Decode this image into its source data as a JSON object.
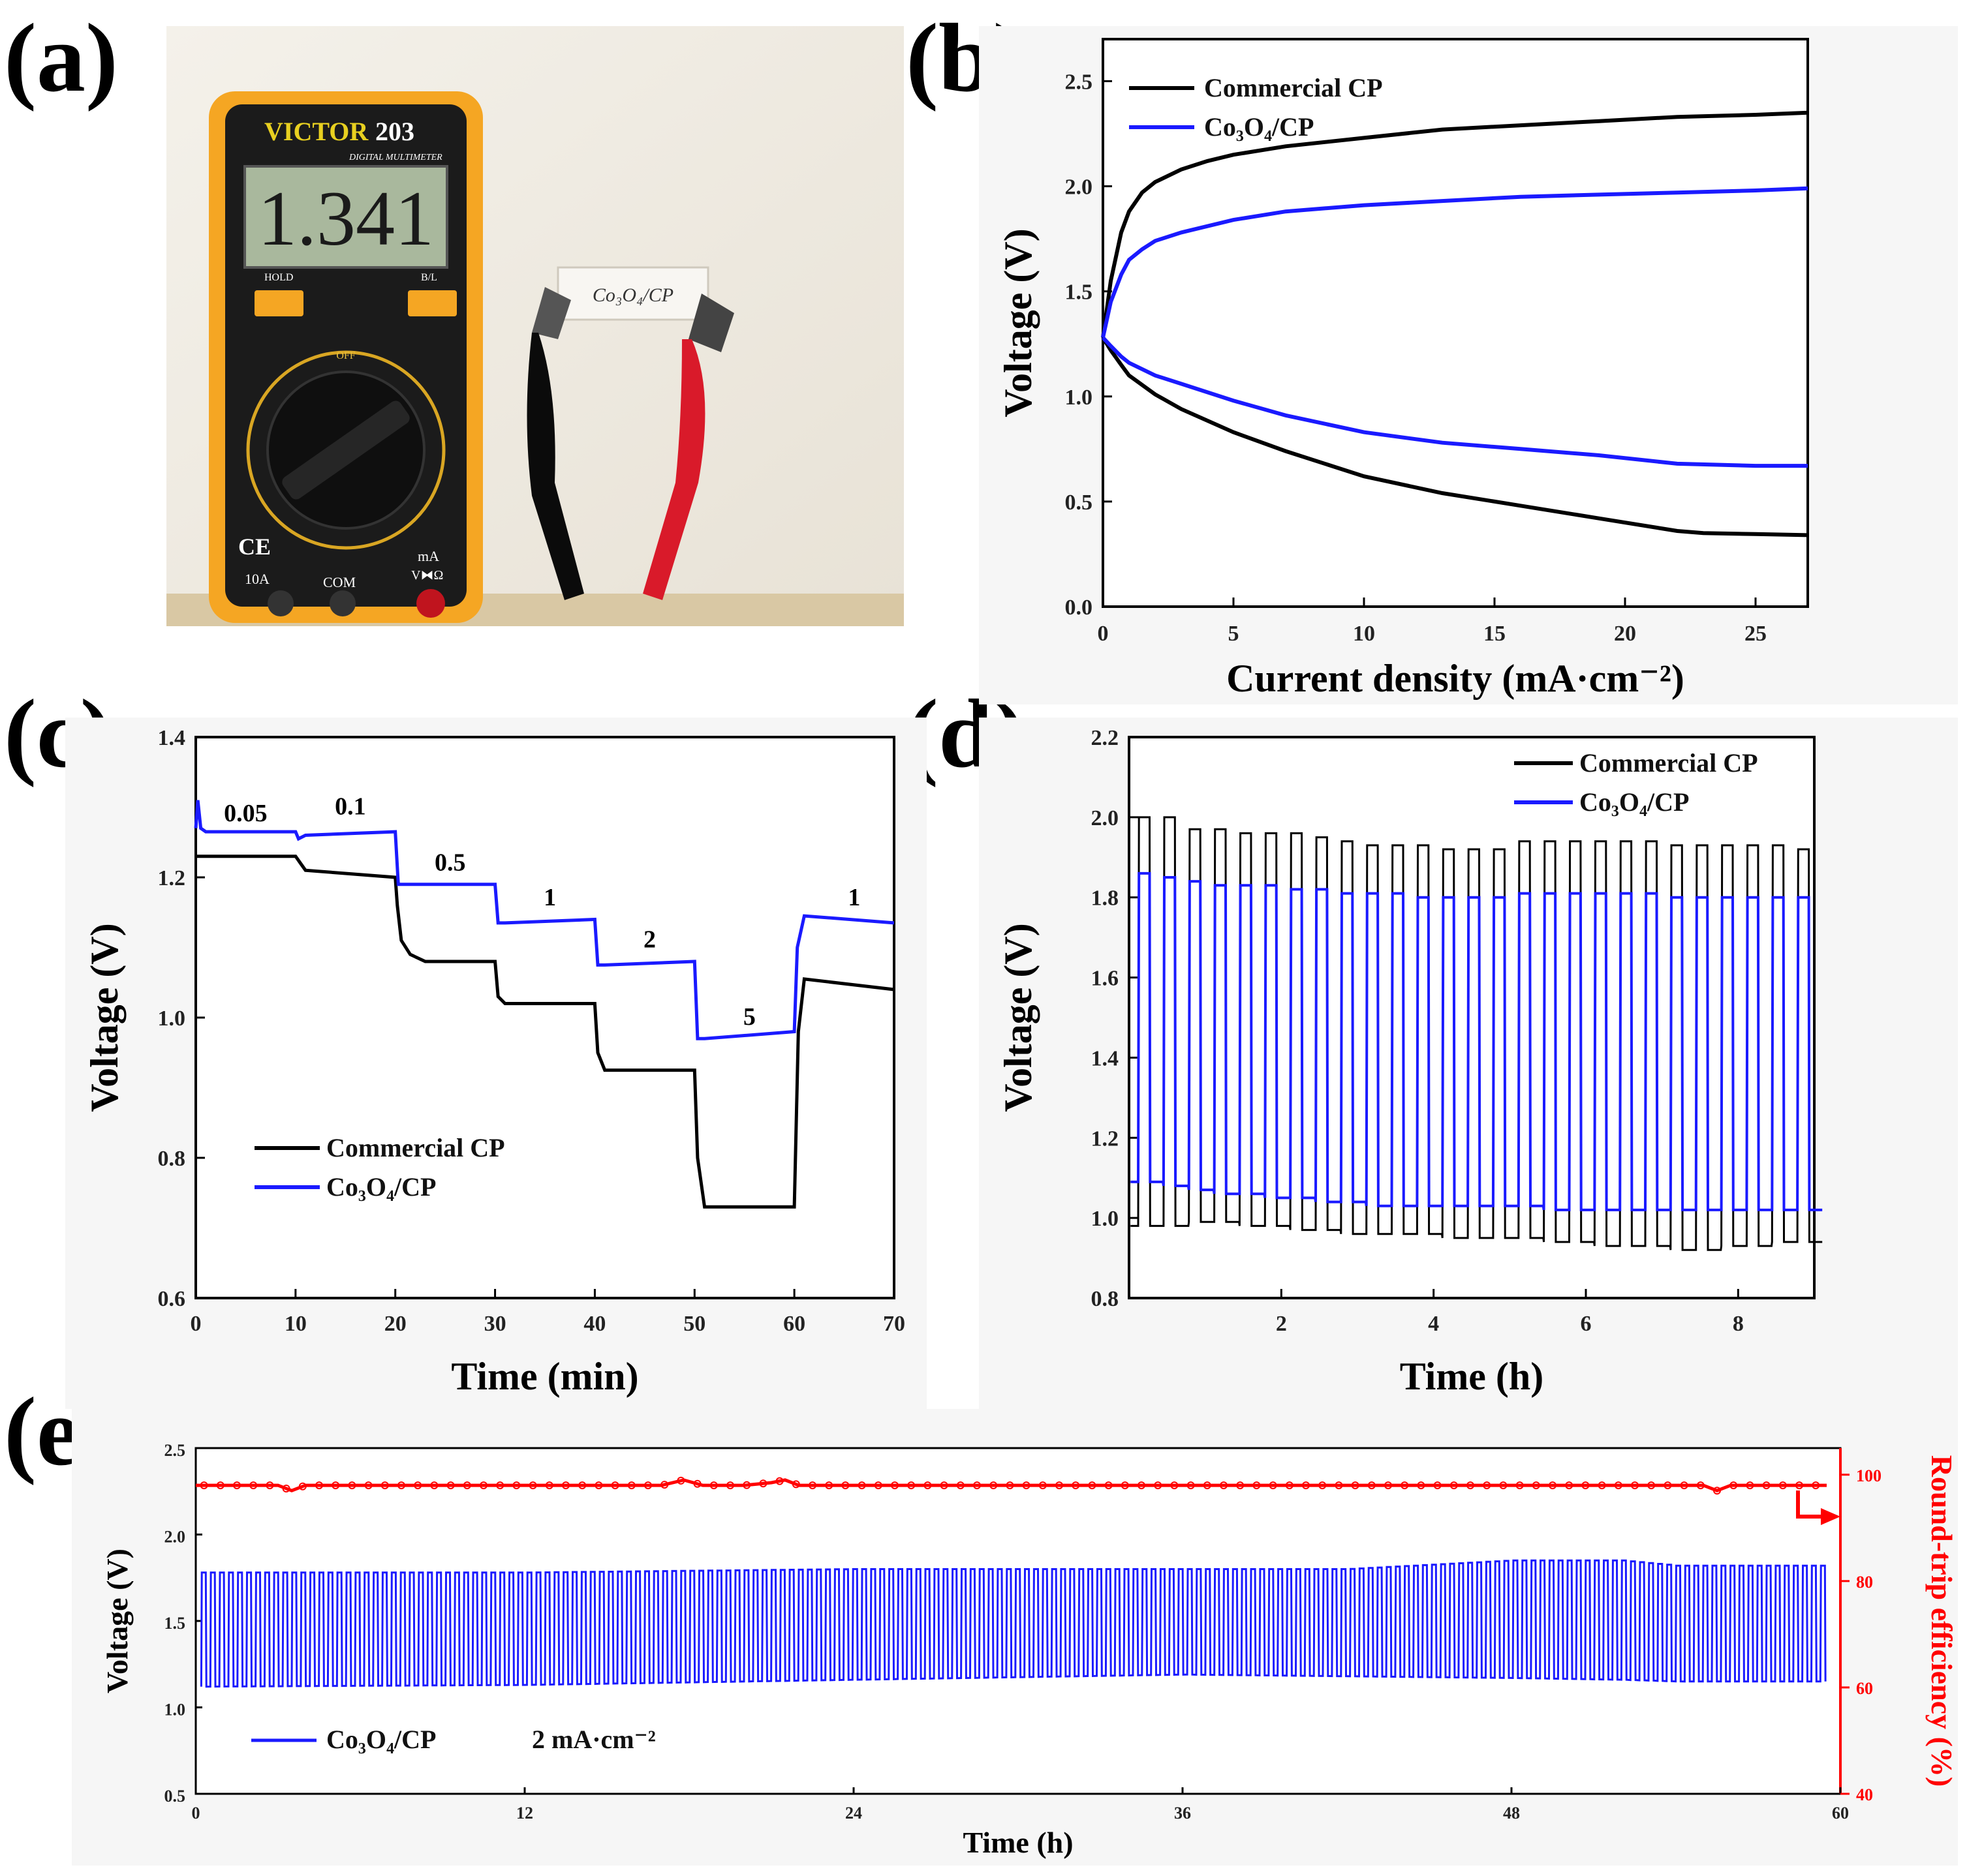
{
  "panels": {
    "a": "(a)",
    "b": "(b)",
    "c": "(c)",
    "d": "(d)",
    "e": "(e)"
  },
  "photo": {
    "brand": "VICTOR",
    "model": "203",
    "model_sub": "DIGITAL MULTIMETER",
    "display_value": "1.341",
    "hold_label": "HOLD",
    "bl_label": "B/L",
    "com_label": "COM",
    "amp_label": "10A",
    "ma_label": "mA",
    "vohm_label": "V⧓Ω",
    "ce_mark": "CE",
    "dial_off": "OFF",
    "sample_label": "Co₃O₄/CP"
  },
  "chart_data": [
    {
      "id": "b",
      "type": "line",
      "xlabel": "Current density (mA·cm⁻²)",
      "ylabel": "Voltage (V)",
      "xlim": [
        0,
        27
      ],
      "ylim": [
        0.0,
        2.7
      ],
      "xticks": [
        0,
        5,
        10,
        15,
        20,
        25
      ],
      "yticks": [
        0.0,
        0.5,
        1.0,
        1.5,
        2.0,
        2.5
      ],
      "legend_position": "top-left",
      "series": [
        {
          "name": "Commercial CP",
          "color": "#000000",
          "branch": "charge",
          "x": [
            0,
            0.3,
            0.7,
            1,
            1.5,
            2,
            3,
            4,
            5,
            7,
            10,
            13,
            16,
            19,
            22,
            25,
            27
          ],
          "y": [
            1.28,
            1.55,
            1.78,
            1.88,
            1.97,
            2.02,
            2.08,
            2.12,
            2.15,
            2.19,
            2.23,
            2.27,
            2.29,
            2.31,
            2.33,
            2.34,
            2.35
          ]
        },
        {
          "name": "Commercial CP",
          "color": "#000000",
          "branch": "discharge",
          "x": [
            0,
            0.3,
            0.7,
            1,
            2,
            3,
            5,
            7,
            10,
            13,
            16,
            19,
            22,
            23,
            25,
            27
          ],
          "y": [
            1.28,
            1.22,
            1.15,
            1.1,
            1.01,
            0.94,
            0.83,
            0.74,
            0.62,
            0.54,
            0.48,
            0.42,
            0.36,
            0.35,
            0.345,
            0.34
          ]
        },
        {
          "name": "Co₃O₄/CP",
          "color": "#1a1aff",
          "branch": "charge",
          "x": [
            0,
            0.3,
            0.7,
            1,
            1.5,
            2,
            3,
            5,
            7,
            10,
            13,
            16,
            19,
            22,
            25,
            27
          ],
          "y": [
            1.28,
            1.45,
            1.58,
            1.65,
            1.7,
            1.74,
            1.78,
            1.84,
            1.88,
            1.91,
            1.93,
            1.95,
            1.96,
            1.97,
            1.98,
            1.99
          ]
        },
        {
          "name": "Co₃O₄/CP",
          "color": "#1a1aff",
          "branch": "discharge",
          "x": [
            0,
            0.3,
            0.7,
            1,
            2,
            3,
            5,
            7,
            10,
            13,
            16,
            19,
            22,
            25,
            27
          ],
          "y": [
            1.28,
            1.24,
            1.19,
            1.16,
            1.1,
            1.06,
            0.98,
            0.91,
            0.83,
            0.78,
            0.75,
            0.72,
            0.68,
            0.67,
            0.67
          ]
        }
      ]
    },
    {
      "id": "c",
      "type": "line",
      "xlabel": "Time (min)",
      "ylabel": "Voltage (V)",
      "xlim": [
        0,
        70
      ],
      "ylim": [
        0.6,
        1.4
      ],
      "xticks": [
        0,
        10,
        20,
        30,
        40,
        50,
        60,
        70
      ],
      "yticks": [
        0.6,
        0.8,
        1.0,
        1.2,
        1.4
      ],
      "legend_position": "bottom-left",
      "annotations": [
        {
          "text": "0.05",
          "x": 5,
          "y": 1.28
        },
        {
          "text": "0.1",
          "x": 15.5,
          "y": 1.29
        },
        {
          "text": "0.5",
          "x": 25.5,
          "y": 1.21
        },
        {
          "text": "1",
          "x": 35.5,
          "y": 1.16
        },
        {
          "text": "2",
          "x": 45.5,
          "y": 1.1
        },
        {
          "text": "5",
          "x": 55.5,
          "y": 0.99
        },
        {
          "text": "1",
          "x": 66,
          "y": 1.16
        }
      ],
      "series": [
        {
          "name": "Commercial CP",
          "color": "#000000",
          "x": [
            0,
            10,
            10.5,
            11,
            20,
            20.2,
            20.6,
            21.5,
            23,
            30,
            30.3,
            31,
            40,
            40.3,
            41,
            50,
            50.3,
            51,
            60,
            60.4,
            61,
            70
          ],
          "y": [
            1.23,
            1.23,
            1.22,
            1.21,
            1.2,
            1.16,
            1.11,
            1.09,
            1.08,
            1.08,
            1.03,
            1.02,
            1.02,
            0.95,
            0.925,
            0.925,
            0.8,
            0.73,
            0.73,
            0.98,
            1.055,
            1.04
          ]
        },
        {
          "name": "Co₃O₄/CP",
          "color": "#1a1aff",
          "x": [
            0,
            0.2,
            0.5,
            1,
            10,
            10.3,
            11,
            20,
            20.3,
            21,
            30,
            30.3,
            31,
            40,
            40.3,
            41,
            50,
            50.3,
            51,
            60,
            60.3,
            61,
            70
          ],
          "y": [
            1.27,
            1.31,
            1.27,
            1.265,
            1.265,
            1.255,
            1.26,
            1.265,
            1.19,
            1.19,
            1.19,
            1.135,
            1.135,
            1.14,
            1.075,
            1.075,
            1.08,
            0.97,
            0.97,
            0.98,
            1.1,
            1.145,
            1.135
          ]
        }
      ]
    },
    {
      "id": "d",
      "type": "line",
      "xlabel": "Time (h)",
      "ylabel": "Voltage (V)",
      "xlim": [
        0,
        9
      ],
      "ylim": [
        0.8,
        2.2
      ],
      "xticks": [
        2,
        4,
        6,
        8
      ],
      "yticks": [
        0.8,
        1.0,
        1.2,
        1.4,
        1.6,
        1.8,
        2.0,
        2.2
      ],
      "legend_position": "top-right",
      "cycle_period_h": 0.333,
      "series": [
        {
          "name": "Commercial CP",
          "color": "#000000",
          "peak_values": [
            2.0,
            2.0,
            1.97,
            1.97,
            1.96,
            1.96,
            1.96,
            1.95,
            1.94,
            1.93,
            1.93,
            1.93,
            1.92,
            1.92,
            1.92,
            1.94,
            1.94,
            1.94,
            1.94,
            1.94,
            1.94,
            1.93,
            1.93,
            1.93,
            1.93,
            1.93,
            1.92
          ],
          "trough_values": [
            0.98,
            0.98,
            0.99,
            0.99,
            0.98,
            0.98,
            0.97,
            0.97,
            0.96,
            0.96,
            0.96,
            0.96,
            0.95,
            0.95,
            0.95,
            0.95,
            0.94,
            0.94,
            0.93,
            0.93,
            0.93,
            0.92,
            0.92,
            0.93,
            0.93,
            0.94,
            0.94
          ]
        },
        {
          "name": "Co₃O₄/CP",
          "color": "#1a1aff",
          "peak_values": [
            1.86,
            1.85,
            1.84,
            1.83,
            1.83,
            1.83,
            1.82,
            1.82,
            1.81,
            1.81,
            1.81,
            1.8,
            1.8,
            1.8,
            1.8,
            1.81,
            1.81,
            1.81,
            1.81,
            1.81,
            1.81,
            1.8,
            1.8,
            1.8,
            1.8,
            1.8,
            1.8
          ],
          "trough_values": [
            1.09,
            1.08,
            1.07,
            1.06,
            1.06,
            1.05,
            1.05,
            1.04,
            1.04,
            1.03,
            1.03,
            1.03,
            1.03,
            1.03,
            1.03,
            1.03,
            1.02,
            1.02,
            1.02,
            1.02,
            1.02,
            1.02,
            1.02,
            1.02,
            1.02,
            1.02,
            1.02
          ]
        }
      ]
    },
    {
      "id": "e",
      "type": "line",
      "xlabel": "Time (h)",
      "ylabel": "Voltage (V)",
      "y2label": "Round-trip efficiency (%)",
      "xlim": [
        0,
        60
      ],
      "ylim": [
        0.5,
        2.5
      ],
      "y2lim": [
        40,
        105
      ],
      "xticks": [
        0,
        12,
        24,
        36,
        48,
        60
      ],
      "yticks": [
        0.5,
        1.0,
        1.5,
        2.0,
        2.5
      ],
      "y2ticks": [
        40,
        60,
        80,
        100
      ],
      "legend_position": "bottom-left",
      "legend_note": "2 mA·cm⁻²",
      "series": [
        {
          "name": "Co₃O₄/CP",
          "color": "#1a1aff",
          "cycles": 180,
          "envelope_x": [
            0,
            12,
            24,
            36,
            42,
            48,
            52,
            54,
            60
          ],
          "upper": [
            1.78,
            1.78,
            1.8,
            1.8,
            1.8,
            1.85,
            1.85,
            1.82,
            1.82
          ],
          "lower": [
            1.12,
            1.13,
            1.16,
            1.19,
            1.18,
            1.17,
            1.16,
            1.15,
            1.15
          ]
        },
        {
          "name": "Round-trip efficiency",
          "color": "#ff0000",
          "axis": "right",
          "x": [
            0,
            3,
            3.5,
            4,
            10,
            17,
            17.8,
            18.5,
            20,
            21,
            21.5,
            22,
            30,
            36,
            40,
            48,
            55,
            55.5,
            56,
            59.5
          ],
          "y": [
            98,
            98,
            97,
            98,
            98,
            98,
            99,
            98,
            98,
            98.5,
            99,
            98,
            98,
            98,
            98,
            98,
            98,
            97,
            98,
            98
          ]
        }
      ]
    }
  ]
}
